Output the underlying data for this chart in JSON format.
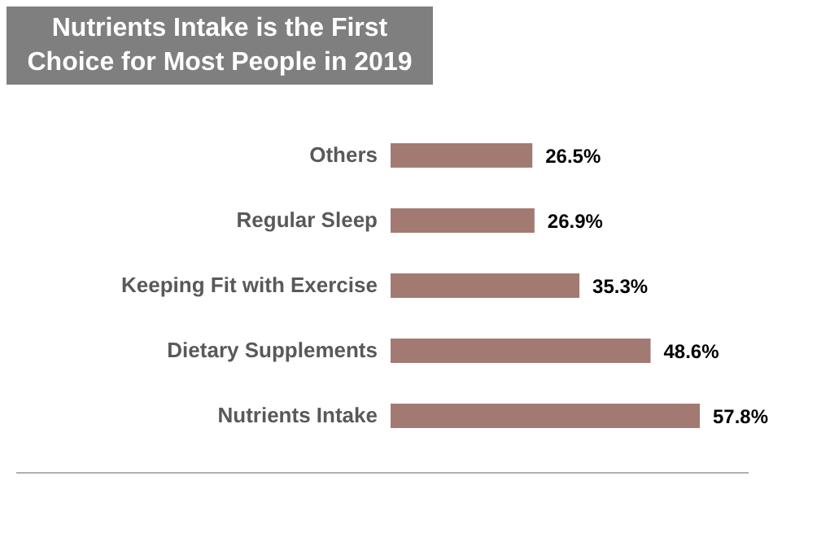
{
  "chart_data": {
    "type": "bar",
    "orientation": "horizontal",
    "title": "Nutrients Intake is the First Choice for Most People in 2019",
    "categories": [
      "Others",
      "Regular Sleep",
      "Keeping Fit with Exercise",
      "Dietary Supplements",
      "Nutrients Intake"
    ],
    "values": [
      26.5,
      26.9,
      35.3,
      48.6,
      57.8
    ],
    "value_labels": [
      "26.5%",
      "26.9%",
      "35.3%",
      "48.6%",
      "57.8%"
    ],
    "color": "#a27a72",
    "grid": false,
    "legend": false
  }
}
